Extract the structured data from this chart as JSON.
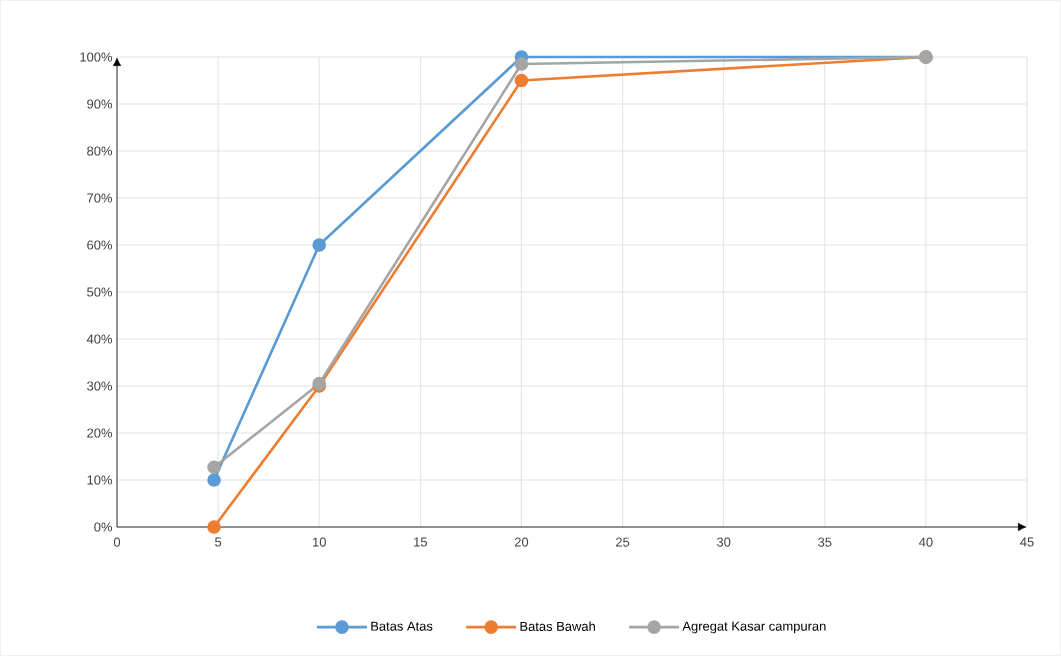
{
  "chart_data": {
    "type": "line",
    "x": [
      4.8,
      10,
      20,
      40
    ],
    "series": [
      {
        "name": "Batas Atas",
        "color": "#5b9bd5",
        "values": [
          10,
          60,
          100,
          100
        ]
      },
      {
        "name": "Batas Bawah",
        "color": "#ed7d31",
        "values": [
          0,
          30,
          95,
          100
        ]
      },
      {
        "name": "Agregat Kasar campuran",
        "color": "#a5a5a5",
        "values": [
          12.7,
          30.5,
          98.5,
          100
        ]
      }
    ],
    "xlim": [
      0,
      45
    ],
    "xticks": [
      0,
      5,
      10,
      15,
      20,
      25,
      30,
      35,
      40,
      45
    ],
    "ylim": [
      0,
      100
    ],
    "yticks": [
      {
        "value": 0,
        "label": "0%"
      },
      {
        "value": 10,
        "label": "10%"
      },
      {
        "value": 20,
        "label": "20%"
      },
      {
        "value": 30,
        "label": "30%"
      },
      {
        "value": 40,
        "label": "40%"
      },
      {
        "value": 50,
        "label": "50%"
      },
      {
        "value": 60,
        "label": "60%"
      },
      {
        "value": 70,
        "label": "70%"
      },
      {
        "value": 80,
        "label": "80%"
      },
      {
        "value": 90,
        "label": "90%"
      },
      {
        "value": 100,
        "label": "100%"
      }
    ],
    "grid": true,
    "legend": "bottom",
    "marker": "circle"
  }
}
